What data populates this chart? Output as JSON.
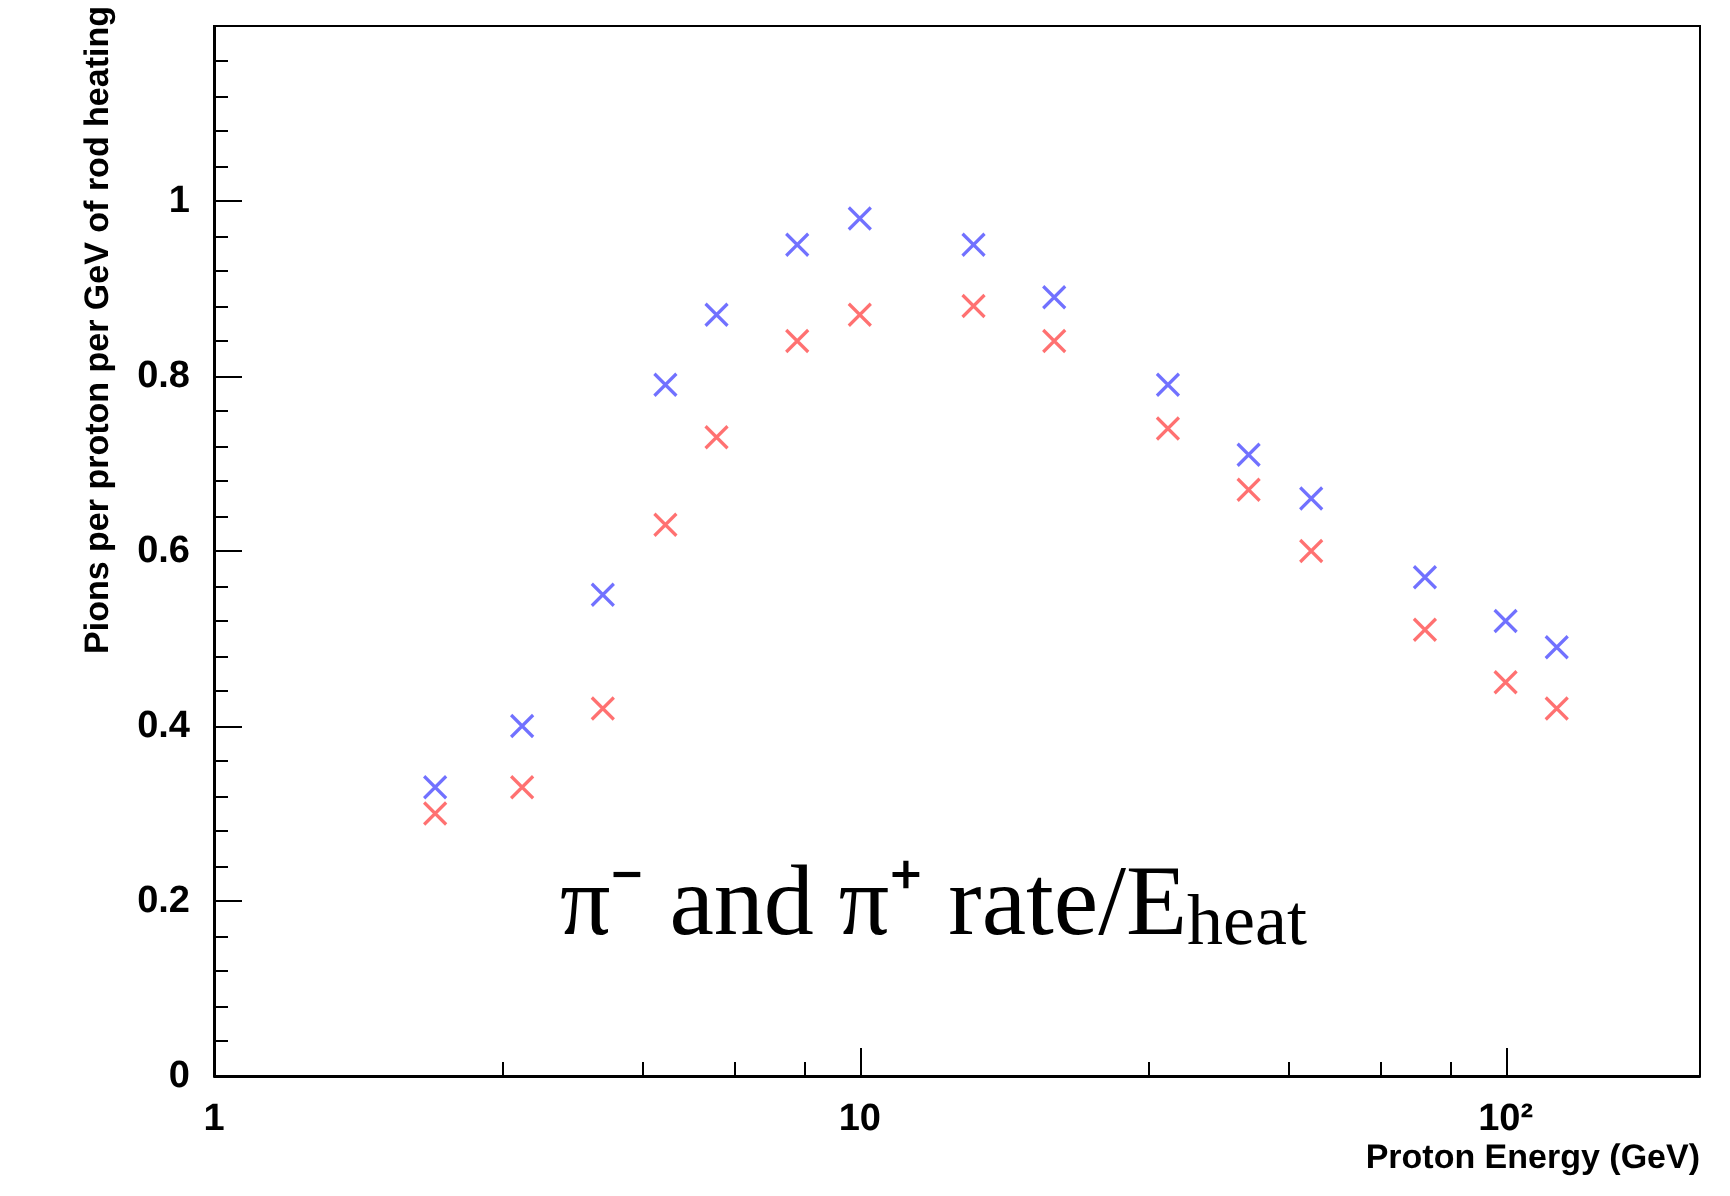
{
  "chart_data": {
    "type": "scatter",
    "xlabel": "Proton Energy (GeV)",
    "ylabel": "Pions per proton per GeV of rod heating",
    "x": [
      2.2,
      3,
      4,
      5,
      6,
      8,
      10,
      15,
      20,
      30,
      40,
      50,
      75,
      100,
      120
    ],
    "series": [
      {
        "color": "#4d4dff",
        "values": [
          0.33,
          0.4,
          0.55,
          0.79,
          0.87,
          0.95,
          0.98,
          0.95,
          0.89,
          0.79,
          0.71,
          0.66,
          0.57,
          0.52,
          0.49
        ]
      },
      {
        "color": "#ff4d4d",
        "values": [
          0.3,
          0.33,
          0.42,
          0.63,
          0.73,
          0.84,
          0.87,
          0.88,
          0.84,
          0.74,
          0.67,
          0.6,
          0.51,
          0.45,
          0.42
        ]
      }
    ],
    "annotations": [
      "π⁻ and π⁺ rate/E$_{heat}$"
    ],
    "log": "x",
    "xlim": [
      1,
      200
    ],
    "xticks": [
      1,
      10,
      {
        "value": 100,
        "label": "10²"
      }
    ],
    "ylim": [
      0,
      1.2
    ],
    "yticks": [
      0,
      0.2,
      0.4,
      0.6,
      0.8,
      1
    ],
    "marker": "cross",
    "grid": false
  }
}
